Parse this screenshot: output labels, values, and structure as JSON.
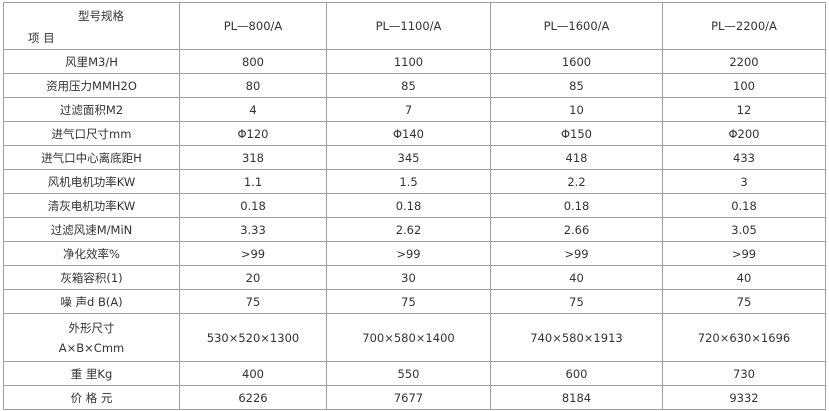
{
  "header": {
    "corner_top": "型号规格",
    "corner_bottom": "项 目",
    "models": [
      "PL—800/A",
      "PL—1100/A",
      "PL—1600/A",
      "PL—2200/A"
    ]
  },
  "rows": [
    {
      "label": "风里M3/H",
      "values": [
        "800",
        "1100",
        "1600",
        "2200"
      ]
    },
    {
      "label": "资用压力MMH2O",
      "values": [
        "80",
        "85",
        "85",
        "100"
      ]
    },
    {
      "label": "过滤面积M2",
      "values": [
        "4",
        "7",
        "10",
        "12"
      ]
    },
    {
      "label": "进气口尺寸mm",
      "values": [
        "Φ120",
        "Φ140",
        "Φ150",
        "Φ200"
      ]
    },
    {
      "label": "进气口中心离底距H",
      "values": [
        "318",
        "345",
        "418",
        "433"
      ]
    },
    {
      "label": "风机电机功率KW",
      "values": [
        "1.1",
        "1.5",
        "2.2",
        "3"
      ]
    },
    {
      "label": "清灰电机功率KW",
      "values": [
        "0.18",
        "0.18",
        "0.18",
        "0.18"
      ]
    },
    {
      "label": "过滤风速M/MiN",
      "values": [
        "3.33",
        "2.62",
        "2.66",
        "3.05"
      ]
    },
    {
      "label": "净化效率%",
      "values": [
        ">99",
        ">99",
        ">99",
        ">99"
      ]
    },
    {
      "label": "灰箱容积(1)",
      "values": [
        "20",
        "30",
        "40",
        "40"
      ]
    },
    {
      "label": "噪 声d B(A)",
      "values": [
        "75",
        "75",
        "75",
        "75"
      ]
    }
  ],
  "size_row": {
    "label_line1": "外形尺寸",
    "label_line2": "A×B×Cmm",
    "values": [
      "530×520×1300",
      "700×580×1400",
      "740×580×1913",
      "720×630×1696"
    ]
  },
  "tail_rows": [
    {
      "label": "重 里Kg",
      "values": [
        "400",
        "550",
        "600",
        "730"
      ]
    },
    {
      "label": "价 格 元",
      "values": [
        "6226",
        "7677",
        "8184",
        "9332"
      ]
    }
  ]
}
